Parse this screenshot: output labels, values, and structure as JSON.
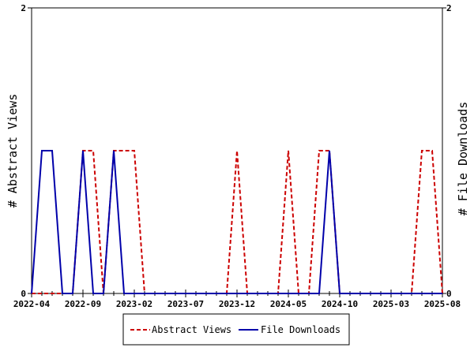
{
  "chart_data": {
    "type": "line",
    "title": "",
    "xlabel": "",
    "ylabel_left": "# Abstract Views",
    "ylabel_right": "# File Downloads",
    "ylim_left": [
      0,
      2
    ],
    "ylim_right": [
      0,
      2
    ],
    "yticks_left": [
      "0",
      "2"
    ],
    "yticks_right": [
      "0",
      "2"
    ],
    "x_range": [
      "2022-04",
      "2025-08"
    ],
    "xticks": [
      "2022-04",
      "2022-09",
      "2023-02",
      "2023-07",
      "2023-12",
      "2024-05",
      "2024-10",
      "2025-03",
      "2025-08"
    ],
    "grid": false,
    "legend_position": "bottom",
    "colors": {
      "abstract_views": "#cc0000",
      "file_downloads": "#0000aa"
    },
    "series": [
      {
        "name": "Abstract Views",
        "style": "dashed",
        "x": [
          "2022-04",
          "2022-05",
          "2022-06",
          "2022-07",
          "2022-08",
          "2022-09",
          "2022-10",
          "2022-11",
          "2022-12",
          "2023-01",
          "2023-02",
          "2023-03",
          "2023-04",
          "2023-05",
          "2023-06",
          "2023-07",
          "2023-08",
          "2023-09",
          "2023-10",
          "2023-11",
          "2023-12",
          "2024-01",
          "2024-02",
          "2024-03",
          "2024-04",
          "2024-05",
          "2024-06",
          "2024-07",
          "2024-08",
          "2024-09",
          "2024-10",
          "2024-11",
          "2024-12",
          "2025-01",
          "2025-02",
          "2025-03",
          "2025-04",
          "2025-05",
          "2025-06",
          "2025-07",
          "2025-08"
        ],
        "values": [
          0,
          0,
          0,
          0,
          0,
          1,
          1,
          0,
          1,
          1,
          1,
          0,
          0,
          0,
          0,
          0,
          0,
          0,
          0,
          0,
          1,
          0,
          0,
          0,
          0,
          1,
          0,
          0,
          1,
          1,
          0,
          0,
          0,
          0,
          0,
          0,
          0,
          0,
          1,
          1,
          0
        ]
      },
      {
        "name": "File Downloads",
        "style": "solid",
        "x": [
          "2022-04",
          "2022-05",
          "2022-06",
          "2022-07",
          "2022-08",
          "2022-09",
          "2022-10",
          "2022-11",
          "2022-12",
          "2023-01",
          "2023-02",
          "2023-03",
          "2023-04",
          "2023-05",
          "2023-06",
          "2023-07",
          "2023-08",
          "2023-09",
          "2023-10",
          "2023-11",
          "2023-12",
          "2024-01",
          "2024-02",
          "2024-03",
          "2024-04",
          "2024-05",
          "2024-06",
          "2024-07",
          "2024-08",
          "2024-09",
          "2024-10",
          "2024-11",
          "2024-12",
          "2025-01",
          "2025-02",
          "2025-03",
          "2025-04",
          "2025-05",
          "2025-06",
          "2025-07",
          "2025-08"
        ],
        "values": [
          0,
          1,
          1,
          0,
          0,
          1,
          0,
          0,
          1,
          0,
          0,
          0,
          0,
          0,
          0,
          0,
          0,
          0,
          0,
          0,
          0,
          0,
          0,
          0,
          0,
          0,
          0,
          0,
          0,
          1,
          0,
          0,
          0,
          0,
          0,
          0,
          0,
          0,
          0,
          0,
          0
        ]
      }
    ]
  }
}
